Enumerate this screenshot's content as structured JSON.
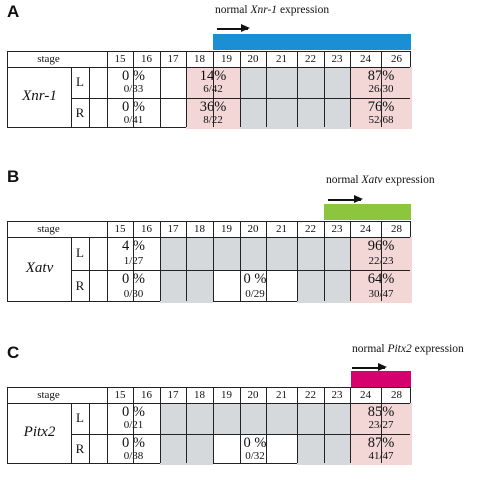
{
  "panels": [
    {
      "letter": "A",
      "caption": {
        "prefix": "normal ",
        "gene": "Xnr-1",
        "suffix": " expression"
      },
      "bar_color": "#1a8fd4",
      "stage_label": "stage",
      "stages": [
        "15",
        "16",
        "17",
        "18",
        "19",
        "20",
        "21",
        "22",
        "23",
        "24",
        "26"
      ],
      "gene": "Xnr-1",
      "rows": [
        {
          "side": "L",
          "cells": [
            {
              "text": "0 %",
              "frac": "0/33",
              "bg": "white"
            },
            {
              "text": "14%",
              "frac": "6/42",
              "bg": "pink"
            },
            {
              "text": "",
              "frac": "",
              "bg": "grey"
            },
            {
              "text": "87%",
              "frac": "26/30",
              "bg": "pink"
            }
          ]
        },
        {
          "side": "R",
          "cells": [
            {
              "text": "0 %",
              "frac": "0/41",
              "bg": "white"
            },
            {
              "text": "36%",
              "frac": "8/22",
              "bg": "pink"
            },
            {
              "text": "",
              "frac": "",
              "bg": "grey"
            },
            {
              "text": "76%",
              "frac": "52/68",
              "bg": "pink"
            }
          ]
        }
      ]
    },
    {
      "letter": "B",
      "caption": {
        "prefix": "normal ",
        "gene": "Xatv",
        "suffix": " expression"
      },
      "bar_color": "#8cc63f",
      "stage_label": "stage",
      "stages": [
        "15",
        "16",
        "17",
        "18",
        "19",
        "20",
        "21",
        "22",
        "23",
        "24",
        "28"
      ],
      "gene": "Xatv",
      "rows": [
        {
          "side": "L",
          "cells": [
            {
              "text": "4 %",
              "frac": "1/27",
              "bg": "white"
            },
            {
              "text": "",
              "frac": "",
              "bg": "grey"
            },
            {
              "text": "96%",
              "frac": "22/23",
              "bg": "pink"
            }
          ]
        },
        {
          "side": "R",
          "cells": [
            {
              "text": "0 %",
              "frac": "0/30",
              "bg": "white"
            },
            {
              "text": "",
              "frac": "",
              "bg": "grey"
            },
            {
              "text": "0 %",
              "frac": "0/29",
              "bg": "white"
            },
            {
              "text": "",
              "frac": "",
              "bg": "grey"
            },
            {
              "text": "64%",
              "frac": "30/47",
              "bg": "pink"
            }
          ]
        }
      ]
    },
    {
      "letter": "C",
      "caption": {
        "prefix": "normal ",
        "gene": "Pitx2",
        "suffix": " expression"
      },
      "bar_color": "#d6006f",
      "stage_label": "stage",
      "stages": [
        "15",
        "16",
        "17",
        "18",
        "19",
        "20",
        "21",
        "22",
        "23",
        "24",
        "28"
      ],
      "gene": "Pitx2",
      "rows": [
        {
          "side": "L",
          "cells": [
            {
              "text": "0 %",
              "frac": "0/21",
              "bg": "white"
            },
            {
              "text": "",
              "frac": "",
              "bg": "grey"
            },
            {
              "text": "85%",
              "frac": "23/27",
              "bg": "pink"
            }
          ]
        },
        {
          "side": "R",
          "cells": [
            {
              "text": "0 %",
              "frac": "0/38",
              "bg": "white"
            },
            {
              "text": "",
              "frac": "",
              "bg": "grey"
            },
            {
              "text": "0 %",
              "frac": "0/32",
              "bg": "white"
            },
            {
              "text": "",
              "frac": "",
              "bg": "grey"
            },
            {
              "text": "87%",
              "frac": "41/47",
              "bg": "pink"
            }
          ]
        }
      ]
    }
  ]
}
